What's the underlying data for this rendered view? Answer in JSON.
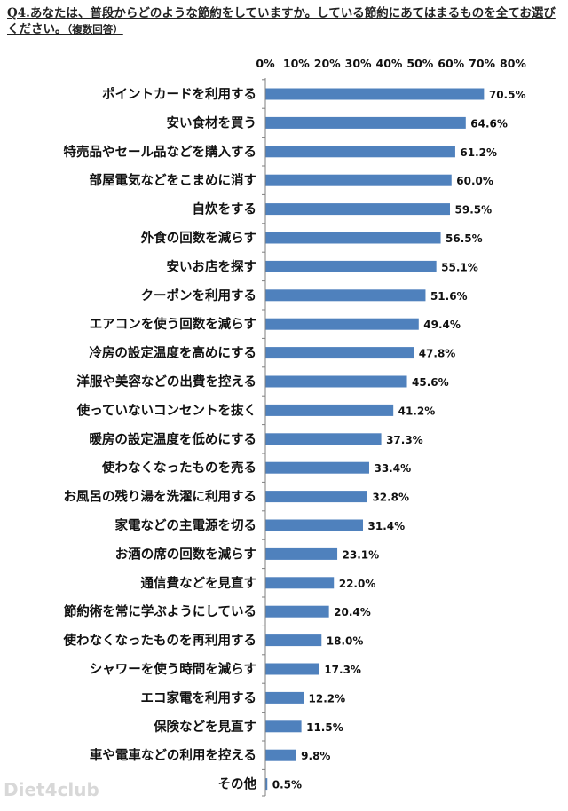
{
  "question": {
    "text": "Q4.あなたは、普段からどのような節約をしていますか。している節約にあてはまるものを全てお選びください。",
    "note": "（複数回答）"
  },
  "watermark": "Diet4club",
  "chart_data": {
    "type": "bar",
    "orientation": "horizontal",
    "title": "",
    "xlim": [
      0,
      80
    ],
    "xticks": [
      "0%",
      "10%",
      "20%",
      "30%",
      "40%",
      "50%",
      "60%",
      "70%",
      "80%"
    ],
    "bar_color": "#4F81BD",
    "categories": [
      "ポイントカードを利用する",
      "安い食材を買う",
      "特売品やセール品などを購入する",
      "部屋電気などをこまめに消す",
      "自炊をする",
      "外食の回数を減らす",
      "安いお店を探す",
      "クーポンを利用する",
      "エアコンを使う回数を減らす",
      "冷房の設定温度を高めにする",
      "洋服や美容などの出費を控える",
      "使っていないコンセントを抜く",
      "暖房の設定温度を低めにする",
      "使わなくなったものを売る",
      "お風呂の残り湯を洗濯に利用する",
      "家電などの主電源を切る",
      "お酒の席の回数を減らす",
      "通信費などを見直す",
      "節約術を常に学ぶようにしている",
      "使わなくなったものを再利用する",
      "シャワーを使う時間を減らす",
      "エコ家電を利用する",
      "保険などを見直す",
      "車や電車などの利用を控える",
      "その他"
    ],
    "values": [
      70.5,
      64.6,
      61.2,
      60.0,
      59.5,
      56.5,
      55.1,
      51.6,
      49.4,
      47.8,
      45.6,
      41.2,
      37.3,
      33.4,
      32.8,
      31.4,
      23.1,
      22.0,
      20.4,
      18.0,
      17.3,
      12.2,
      11.5,
      9.8,
      0.5
    ],
    "value_labels": [
      "70.5%",
      "64.6%",
      "61.2%",
      "60.0%",
      "59.5%",
      "56.5%",
      "55.1%",
      "51.6%",
      "49.4%",
      "47.8%",
      "45.6%",
      "41.2%",
      "37.3%",
      "33.4%",
      "32.8%",
      "31.4%",
      "23.1%",
      "22.0%",
      "20.4%",
      "18.0%",
      "17.3%",
      "12.2%",
      "11.5%",
      "9.8%",
      "0.5%"
    ]
  }
}
